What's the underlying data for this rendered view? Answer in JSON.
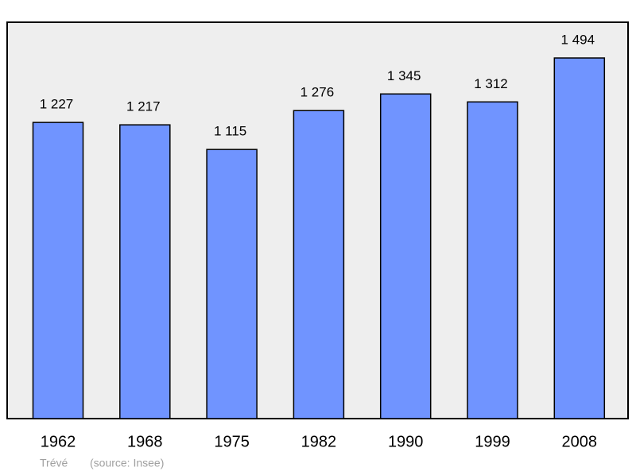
{
  "chart_data": {
    "type": "bar",
    "categories": [
      "1962",
      "1968",
      "1975",
      "1982",
      "1990",
      "1999",
      "2008"
    ],
    "values": [
      1227,
      1217,
      1115,
      1276,
      1345,
      1312,
      1494
    ],
    "value_labels": [
      "1 227",
      "1 217",
      "1 115",
      "1 276",
      "1 345",
      "1 312",
      "1 494"
    ],
    "color": "#7094ff",
    "annotations": [
      "Trévé",
      "(source: Insee)"
    ]
  }
}
